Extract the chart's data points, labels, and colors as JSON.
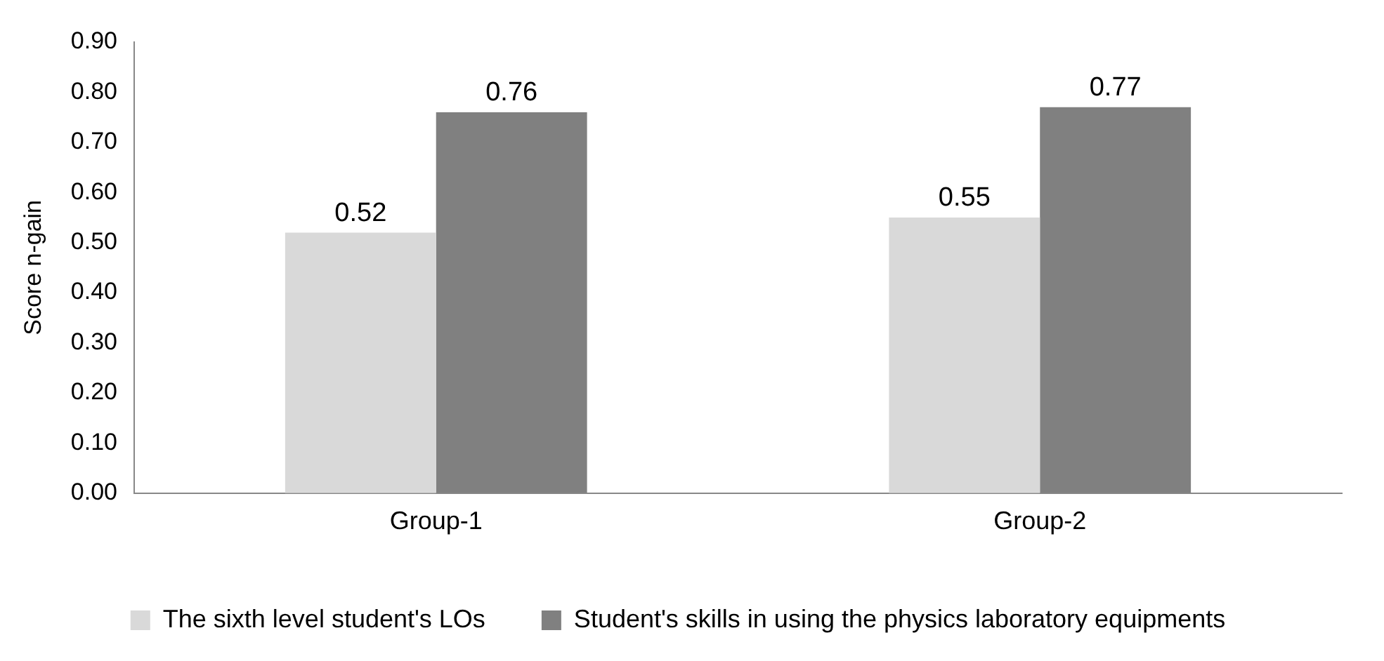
{
  "chart_data": {
    "type": "bar",
    "ylabel": "Score n-gain",
    "categories": [
      "Group-1",
      "Group-2"
    ],
    "series": [
      {
        "name": "The sixth level student's LOs",
        "color": "#d9d9d9",
        "values": [
          0.52,
          0.55
        ]
      },
      {
        "name": "Student's skills in using the physics laboratory equipments",
        "color": "#808080",
        "values": [
          0.76,
          0.77
        ]
      }
    ],
    "ylim": [
      0,
      0.9
    ],
    "yticks": [
      {
        "value": 0,
        "label": "0.00"
      },
      {
        "value": 0.1,
        "label": "0.10"
      },
      {
        "value": 0.2,
        "label": "0.20"
      },
      {
        "value": 0.3,
        "label": "0.30"
      },
      {
        "value": 0.4,
        "label": "0.40"
      },
      {
        "value": 0.5,
        "label": "0.50"
      },
      {
        "value": 0.6,
        "label": "0.60"
      },
      {
        "value": 0.7,
        "label": "0.70"
      },
      {
        "value": 0.8,
        "label": "0.80"
      },
      {
        "value": 0.9,
        "label": "0.90"
      }
    ],
    "grid": false,
    "legend": "bottom",
    "data_labels": true
  }
}
